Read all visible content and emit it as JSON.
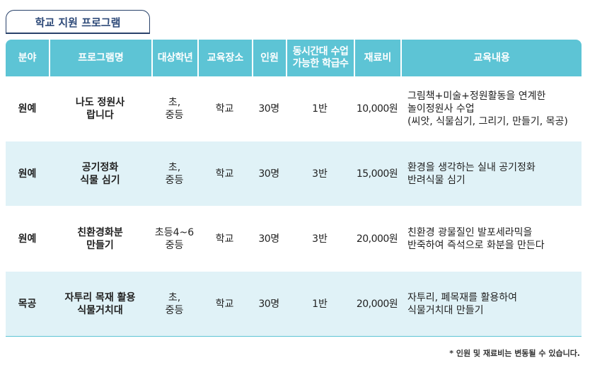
{
  "section_title": "학교 지원 프로그램",
  "headers": {
    "field": "분야",
    "program": "프로그램명",
    "target": "대상학년",
    "place": "교육장소",
    "people": "인원",
    "classes_line1": "동시간대 수업",
    "classes_line2": "가능한 학급수",
    "fee": "재료비",
    "content": "교육내용"
  },
  "rows": [
    {
      "field": "원예",
      "program": [
        "나도 정원사",
        "랍니다"
      ],
      "target": [
        "초,",
        "중등"
      ],
      "place": "학교",
      "people": "30명",
      "classes": "1반",
      "fee": "10,000원",
      "content": [
        "그림책+미술+정원활동을 연계한",
        "놀이정원사 수업",
        "(씨앗, 식물심기, 그리기, 만들기, 목공)"
      ]
    },
    {
      "field": "원예",
      "program": [
        "공기정화",
        "식물 심기"
      ],
      "target": [
        "초,",
        "중등"
      ],
      "place": "학교",
      "people": "30명",
      "classes": "3반",
      "fee": "15,000원",
      "content": [
        "환경을 생각하는 실내 공기정화",
        "반려식물 심기"
      ]
    },
    {
      "field": "원예",
      "program": [
        "친환경화분",
        "만들기"
      ],
      "target": [
        "초등4~6",
        "중등"
      ],
      "place": "학교",
      "people": "30명",
      "classes": "3반",
      "fee": "20,000원",
      "content": [
        "친환경 광물질인 발포세라믹을",
        "반죽하여 즉석으로 화분을 만든다"
      ]
    },
    {
      "field": "목공",
      "program": [
        "자투리 목재 활용",
        "식물거치대"
      ],
      "target": [
        "초,",
        "중등"
      ],
      "place": "학교",
      "people": "30명",
      "classes": "1반",
      "fee": "20,000원",
      "content": [
        "자투리, 폐목재를 활용하여",
        "식물거치대 만들기"
      ]
    }
  ],
  "footnote": "* 인원 및 재료비는 변동될 수 있습니다.",
  "colors": {
    "header_bg": "#5dc4d5",
    "alt_row_bg": "#e0f2f7",
    "title_color": "#2d4978"
  }
}
